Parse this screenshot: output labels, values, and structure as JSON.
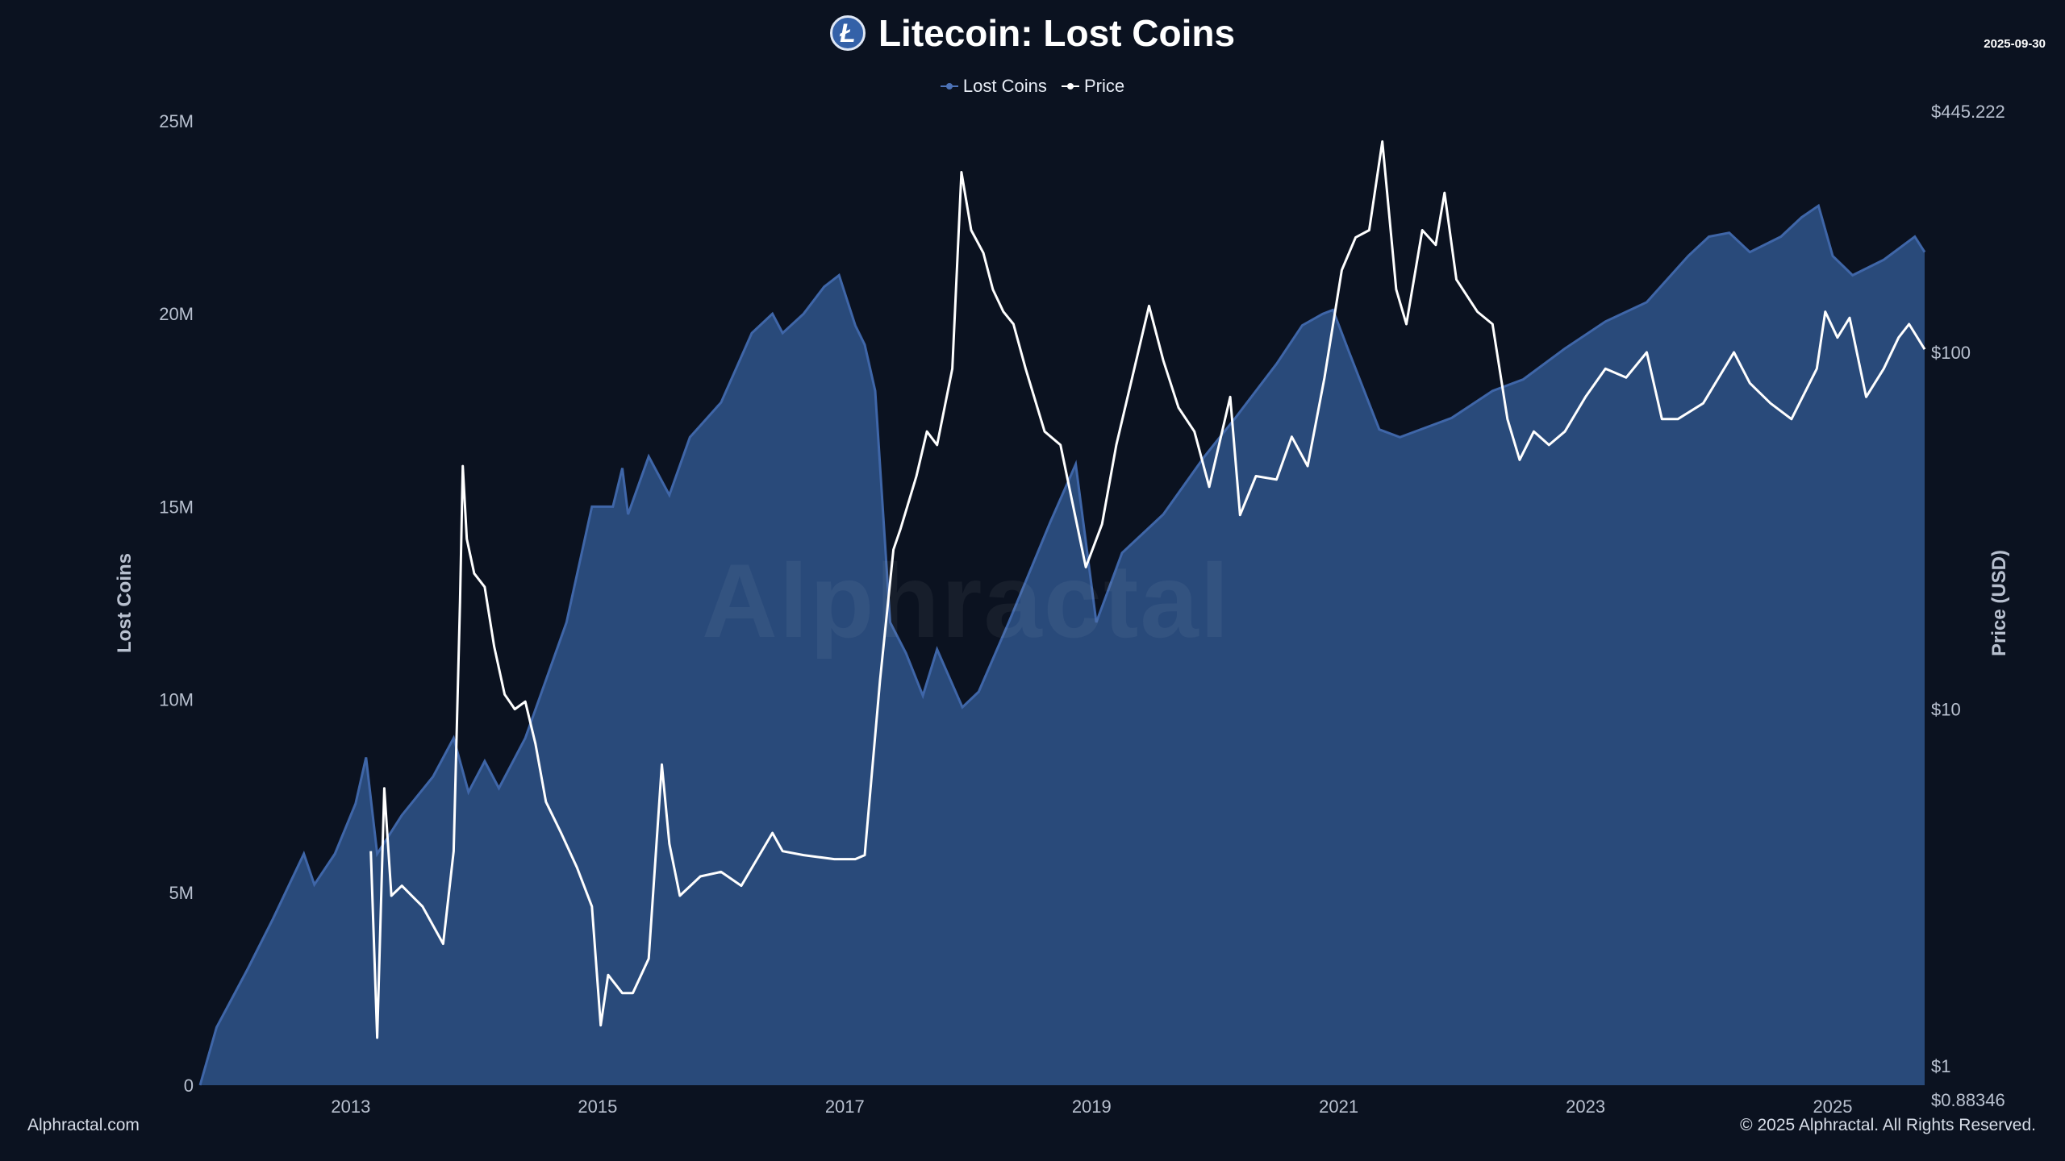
{
  "header": {
    "title": "Litecoin: Lost Coins",
    "logo_glyph": "Ł",
    "date": "2025-09-30"
  },
  "legend": {
    "items": [
      {
        "label": "Lost Coins",
        "color": "#4d73b8"
      },
      {
        "label": "Price",
        "color": "#ffffff"
      }
    ]
  },
  "footer": {
    "left": "Alphractal.com",
    "right": "© 2025 Alphractal. All Rights Reserved."
  },
  "watermark": "Alphractal",
  "colors": {
    "background": "#0b1220",
    "area_fill": "#294a7a",
    "area_line": "#3f66a8",
    "price_line": "#ffffff",
    "axis_text": "#b8c0cf"
  },
  "chart_data": {
    "type": "line",
    "title": "Litecoin: Lost Coins",
    "x_axis": {
      "type": "date",
      "range": [
        "2011-10-13",
        "2025-09-30"
      ],
      "tick_labels": [
        "2013",
        "2015",
        "2017",
        "2019",
        "2021",
        "2023",
        "2025"
      ]
    },
    "y_left": {
      "label": "Lost Coins",
      "range": [
        0,
        25000000
      ],
      "tick_labels": [
        "0",
        "5M",
        "10M",
        "15M",
        "20M",
        "25M"
      ],
      "tick_values": [
        0,
        5000000,
        10000000,
        15000000,
        20000000,
        25000000
      ]
    },
    "y_right": {
      "label": "Price (USD)",
      "scale": "log",
      "range": [
        0.88346,
        445.222
      ],
      "tick_labels": [
        "$0.88346",
        "$1",
        "$10",
        "$100",
        "$445.222"
      ],
      "tick_values": [
        0.88346,
        1,
        10,
        100,
        445.222
      ]
    },
    "series": [
      {
        "name": "Lost Coins",
        "type": "area",
        "axis": "left",
        "points": [
          [
            "2011-10-13",
            0
          ],
          [
            "2011-12-01",
            1500000
          ],
          [
            "2012-03-01",
            3000000
          ],
          [
            "2012-05-15",
            4300000
          ],
          [
            "2012-08-15",
            6000000
          ],
          [
            "2012-09-15",
            5200000
          ],
          [
            "2012-11-15",
            6000000
          ],
          [
            "2013-01-15",
            7300000
          ],
          [
            "2013-02-15",
            8500000
          ],
          [
            "2013-03-20",
            6000000
          ],
          [
            "2013-06-01",
            7000000
          ],
          [
            "2013-09-01",
            8000000
          ],
          [
            "2013-11-01",
            9000000
          ],
          [
            "2013-12-15",
            7600000
          ],
          [
            "2014-02-01",
            8400000
          ],
          [
            "2014-03-15",
            7700000
          ],
          [
            "2014-06-01",
            9000000
          ],
          [
            "2014-10-01",
            12000000
          ],
          [
            "2014-12-15",
            15000000
          ],
          [
            "2015-02-15",
            15000000
          ],
          [
            "2015-03-15",
            16000000
          ],
          [
            "2015-04-01",
            14800000
          ],
          [
            "2015-06-01",
            16300000
          ],
          [
            "2015-08-01",
            15300000
          ],
          [
            "2015-10-01",
            16800000
          ],
          [
            "2016-01-01",
            17700000
          ],
          [
            "2016-04-01",
            19500000
          ],
          [
            "2016-06-01",
            20000000
          ],
          [
            "2016-07-01",
            19500000
          ],
          [
            "2016-09-01",
            20000000
          ],
          [
            "2016-11-01",
            20700000
          ],
          [
            "2016-12-15",
            21000000
          ],
          [
            "2017-02-01",
            19700000
          ],
          [
            "2017-03-01",
            19200000
          ],
          [
            "2017-04-01",
            18000000
          ],
          [
            "2017-05-15",
            12000000
          ],
          [
            "2017-07-01",
            11200000
          ],
          [
            "2017-08-20",
            10100000
          ],
          [
            "2017-10-01",
            11300000
          ],
          [
            "2017-12-15",
            9800000
          ],
          [
            "2018-02-01",
            10200000
          ],
          [
            "2018-05-01",
            12000000
          ],
          [
            "2018-09-01",
            14600000
          ],
          [
            "2018-11-15",
            16100000
          ],
          [
            "2019-01-15",
            12000000
          ],
          [
            "2019-04-01",
            13800000
          ],
          [
            "2019-08-01",
            14800000
          ],
          [
            "2019-12-01",
            16300000
          ],
          [
            "2020-03-01",
            17300000
          ],
          [
            "2020-07-01",
            18700000
          ],
          [
            "2020-09-15",
            19700000
          ],
          [
            "2020-11-15",
            20000000
          ],
          [
            "2020-12-15",
            20100000
          ],
          [
            "2021-02-01",
            19000000
          ],
          [
            "2021-05-01",
            17000000
          ],
          [
            "2021-07-01",
            16800000
          ],
          [
            "2021-12-01",
            17300000
          ],
          [
            "2022-04-01",
            18000000
          ],
          [
            "2022-07-01",
            18300000
          ],
          [
            "2022-11-01",
            19100000
          ],
          [
            "2023-03-01",
            19800000
          ],
          [
            "2023-07-01",
            20300000
          ],
          [
            "2023-11-01",
            21500000
          ],
          [
            "2024-01-01",
            22000000
          ],
          [
            "2024-03-01",
            22100000
          ],
          [
            "2024-05-01",
            21600000
          ],
          [
            "2024-08-01",
            22000000
          ],
          [
            "2024-10-01",
            22500000
          ],
          [
            "2024-11-20",
            22800000
          ],
          [
            "2025-01-01",
            21500000
          ],
          [
            "2025-03-01",
            21000000
          ],
          [
            "2025-06-01",
            21400000
          ],
          [
            "2025-09-01",
            22000000
          ],
          [
            "2025-09-30",
            21600000
          ]
        ]
      },
      {
        "name": "Price",
        "type": "line",
        "axis": "right",
        "points": [
          [
            "2013-03-01",
            4
          ],
          [
            "2013-03-20",
            1.2
          ],
          [
            "2013-04-10",
            6
          ],
          [
            "2013-05-01",
            3
          ],
          [
            "2013-06-01",
            3.2
          ],
          [
            "2013-08-01",
            2.8
          ],
          [
            "2013-10-01",
            2.2
          ],
          [
            "2013-11-01",
            4
          ],
          [
            "2013-11-20",
            20
          ],
          [
            "2013-11-28",
            48
          ],
          [
            "2013-12-10",
            30
          ],
          [
            "2014-01-01",
            24
          ],
          [
            "2014-02-01",
            22
          ],
          [
            "2014-03-01",
            15
          ],
          [
            "2014-04-01",
            11
          ],
          [
            "2014-05-01",
            10
          ],
          [
            "2014-06-01",
            10.5
          ],
          [
            "2014-07-01",
            8
          ],
          [
            "2014-08-01",
            5.5
          ],
          [
            "2014-09-15",
            4.5
          ],
          [
            "2014-11-01",
            3.6
          ],
          [
            "2014-12-15",
            2.8
          ],
          [
            "2015-01-10",
            1.3
          ],
          [
            "2015-02-01",
            1.8
          ],
          [
            "2015-03-15",
            1.6
          ],
          [
            "2015-04-15",
            1.6
          ],
          [
            "2015-06-01",
            2.0
          ],
          [
            "2015-07-10",
            7.0
          ],
          [
            "2015-08-01",
            4.2
          ],
          [
            "2015-09-01",
            3.0
          ],
          [
            "2015-11-01",
            3.4
          ],
          [
            "2016-01-01",
            3.5
          ],
          [
            "2016-03-01",
            3.2
          ],
          [
            "2016-06-01",
            4.5
          ],
          [
            "2016-07-01",
            4.0
          ],
          [
            "2016-09-01",
            3.9
          ],
          [
            "2016-12-01",
            3.8
          ],
          [
            "2017-02-01",
            3.8
          ],
          [
            "2017-03-01",
            3.9
          ],
          [
            "2017-04-15",
            12
          ],
          [
            "2017-05-25",
            28
          ],
          [
            "2017-06-15",
            32
          ],
          [
            "2017-08-01",
            45
          ],
          [
            "2017-09-01",
            60
          ],
          [
            "2017-10-01",
            55
          ],
          [
            "2017-11-15",
            90
          ],
          [
            "2017-12-12",
            320
          ],
          [
            "2018-01-10",
            220
          ],
          [
            "2018-02-15",
            190
          ],
          [
            "2018-03-15",
            150
          ],
          [
            "2018-04-15",
            130
          ],
          [
            "2018-05-15",
            120
          ],
          [
            "2018-06-20",
            90
          ],
          [
            "2018-08-15",
            60
          ],
          [
            "2018-10-01",
            55
          ],
          [
            "2018-12-15",
            25
          ],
          [
            "2019-02-01",
            33
          ],
          [
            "2019-03-15",
            55
          ],
          [
            "2019-05-01",
            85
          ],
          [
            "2019-06-20",
            135
          ],
          [
            "2019-08-01",
            95
          ],
          [
            "2019-09-15",
            70
          ],
          [
            "2019-11-01",
            60
          ],
          [
            "2019-12-15",
            42
          ],
          [
            "2020-02-15",
            75
          ],
          [
            "2020-03-15",
            35
          ],
          [
            "2020-05-01",
            45
          ],
          [
            "2020-07-01",
            44
          ],
          [
            "2020-08-15",
            58
          ],
          [
            "2020-10-01",
            48
          ],
          [
            "2020-11-20",
            85
          ],
          [
            "2021-01-10",
            170
          ],
          [
            "2021-02-20",
            210
          ],
          [
            "2021-04-01",
            220
          ],
          [
            "2021-05-10",
            390
          ],
          [
            "2021-06-20",
            150
          ],
          [
            "2021-07-20",
            120
          ],
          [
            "2021-09-05",
            220
          ],
          [
            "2021-10-15",
            200
          ],
          [
            "2021-11-10",
            280
          ],
          [
            "2021-12-15",
            160
          ],
          [
            "2022-02-15",
            130
          ],
          [
            "2022-04-01",
            120
          ],
          [
            "2022-05-15",
            65
          ],
          [
            "2022-06-20",
            50
          ],
          [
            "2022-08-01",
            60
          ],
          [
            "2022-09-15",
            55
          ],
          [
            "2022-11-01",
            60
          ],
          [
            "2023-01-01",
            75
          ],
          [
            "2023-03-01",
            90
          ],
          [
            "2023-05-01",
            85
          ],
          [
            "2023-07-01",
            100
          ],
          [
            "2023-08-15",
            65
          ],
          [
            "2023-10-01",
            65
          ],
          [
            "2023-12-15",
            72
          ],
          [
            "2024-03-15",
            100
          ],
          [
            "2024-05-01",
            82
          ],
          [
            "2024-07-01",
            72
          ],
          [
            "2024-09-01",
            65
          ],
          [
            "2024-11-15",
            90
          ],
          [
            "2024-12-10",
            130
          ],
          [
            "2025-01-15",
            110
          ],
          [
            "2025-02-20",
            125
          ],
          [
            "2025-04-10",
            75
          ],
          [
            "2025-06-01",
            90
          ],
          [
            "2025-07-15",
            110
          ],
          [
            "2025-08-15",
            120
          ],
          [
            "2025-09-30",
            102
          ]
        ]
      }
    ],
    "legend_position": "top-center",
    "grid": false
  }
}
